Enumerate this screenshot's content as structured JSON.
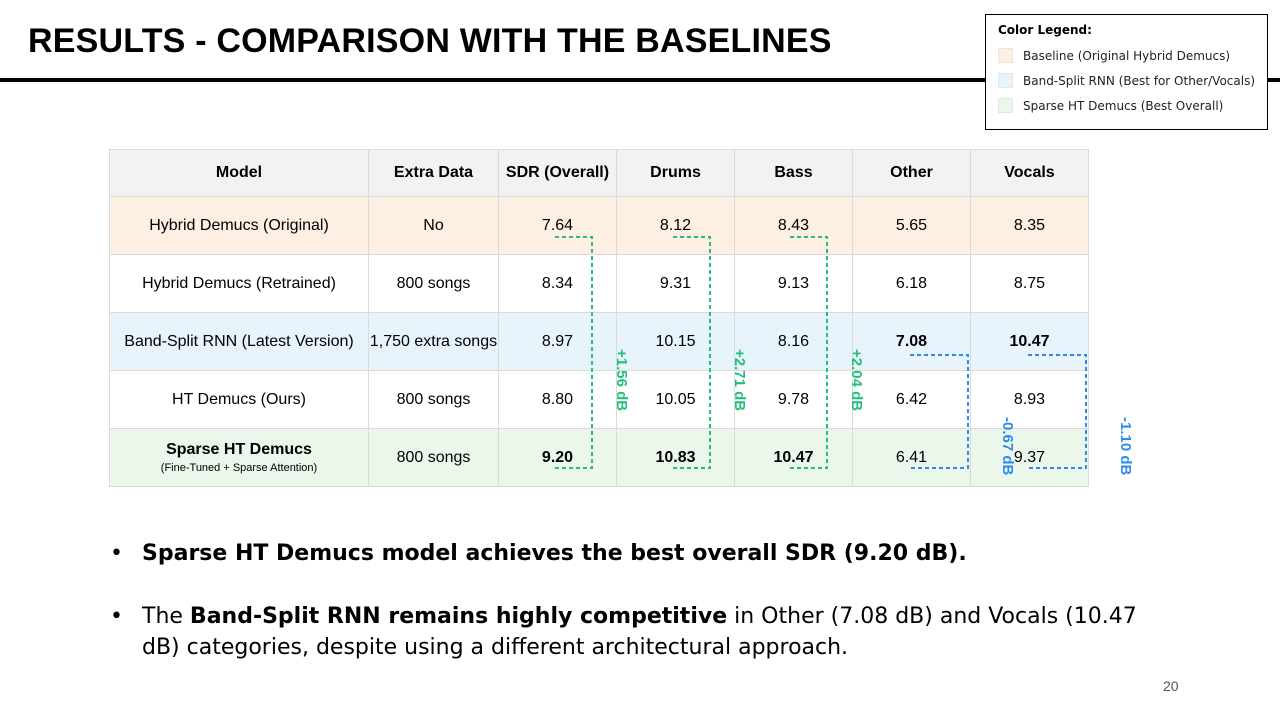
{
  "slide": {
    "title": "RESULTS - COMPARISON WITH THE BASELINES",
    "page_number": "20"
  },
  "legend": {
    "title": "Color Legend:",
    "items": [
      {
        "label": "Baseline (Original Hybrid Demucs)",
        "color": "#fdefe2"
      },
      {
        "label": "Band-Split RNN (Best for Other/Vocals)",
        "color": "#e8f4fc"
      },
      {
        "label": "Sparse HT Demucs (Best Overall)",
        "color": "#eaf7ea"
      }
    ]
  },
  "table": {
    "headers": [
      "Model",
      "Extra Data",
      "SDR (Overall)",
      "Drums",
      "Bass",
      "Other",
      "Vocals"
    ],
    "rows": [
      {
        "model": "Hybrid Demucs (Original)",
        "extra": "No",
        "sdr": "7.64",
        "drums": "8.12",
        "bass": "8.43",
        "other": "5.65",
        "vocals": "8.35"
      },
      {
        "model": "Hybrid Demucs (Retrained)",
        "extra": "800 songs",
        "sdr": "8.34",
        "drums": "9.31",
        "bass": "9.13",
        "other": "6.18",
        "vocals": "8.75"
      },
      {
        "model": "Band-Split RNN (Latest Version)",
        "extra": "1,750 extra songs",
        "sdr": "8.97",
        "drums": "10.15",
        "bass": "8.16",
        "other": "7.08",
        "vocals": "10.47"
      },
      {
        "model": "HT Demucs (Ours)",
        "extra": "800 songs",
        "sdr": "8.80",
        "drums": "10.05",
        "bass": "9.78",
        "other": "6.42",
        "vocals": "8.93"
      },
      {
        "model": "Sparse HT Demucs",
        "model_sub": "(Fine-Tuned + Sparse Attention)",
        "extra": "800 songs",
        "sdr": "9.20",
        "drums": "10.83",
        "bass": "10.47",
        "other": "6.41",
        "vocals": "9.37"
      }
    ]
  },
  "annotations": {
    "sdr_gain": "+1.56 dB",
    "drums_gain": "+2.71 dB",
    "bass_gain": "+2.04 dB",
    "other_diff": "-0.67 dB",
    "vocals_diff": "-1.10 dB",
    "green": "#22c07a",
    "blue": "#2f8ae8"
  },
  "bullets": {
    "b1": "Sparse HT Demucs model achieves the best overall SDR (9.20 dB).",
    "b2_pre": "The ",
    "b2_bold": "Band-Split RNN remains highly competitive",
    "b2_post": " in Other (7.08 dB) and Vocals (10.47 dB) categories, despite using a different architectural approach."
  }
}
